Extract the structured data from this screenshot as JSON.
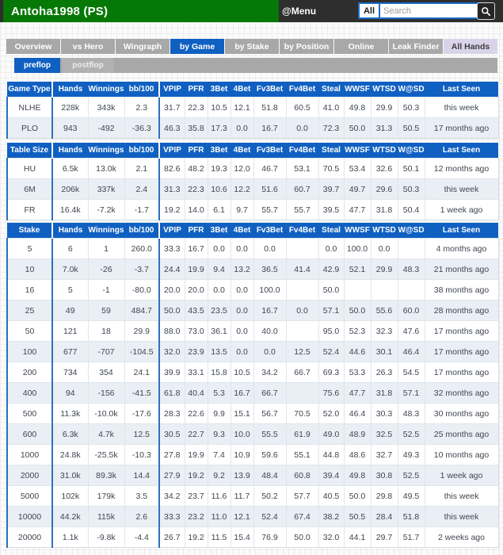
{
  "topbar": {
    "title": "Antoha1998 (PS)",
    "menu_label": "@Menu",
    "filter_value": "All",
    "search_placeholder": "Search"
  },
  "tabs": [
    {
      "label": "Overview",
      "state": "default"
    },
    {
      "label": "vs Hero",
      "state": "default"
    },
    {
      "label": "Wingraph",
      "state": "default"
    },
    {
      "label": "by Game",
      "state": "active"
    },
    {
      "label": "by Stake",
      "state": "default"
    },
    {
      "label": "by Position",
      "state": "default"
    },
    {
      "label": "Online",
      "state": "default"
    },
    {
      "label": "Leak Finder",
      "state": "default"
    },
    {
      "label": "All Hands",
      "state": "highlight"
    }
  ],
  "subtabs": [
    {
      "label": "preflop",
      "state": "active"
    },
    {
      "label": "postflop",
      "state": "default"
    }
  ],
  "stat_columns": [
    "Hands",
    "Winnings",
    "bb/100",
    "VPIP",
    "PFR",
    "3Bet",
    "4Bet",
    "Fv3Bet",
    "Fv4Bet",
    "Steal",
    "WWSF",
    "WTSD",
    "W@SD",
    "Last Seen"
  ],
  "tables": [
    {
      "key_header": "Game Type",
      "rows": [
        {
          "key": "NLHE",
          "values": [
            "228k",
            "343k",
            "2.3",
            "31.7",
            "22.3",
            "10.5",
            "12.1",
            "51.8",
            "60.5",
            "41.0",
            "49.8",
            "29.9",
            "50.3",
            "this week"
          ]
        },
        {
          "key": "PLO",
          "values": [
            "943",
            "-492",
            "-36.3",
            "46.3",
            "35.8",
            "17.3",
            "0.0",
            "16.7",
            "0.0",
            "72.3",
            "50.0",
            "31.3",
            "50.5",
            "17 months ago"
          ]
        }
      ]
    },
    {
      "key_header": "Table Size",
      "rows": [
        {
          "key": "HU",
          "values": [
            "6.5k",
            "13.0k",
            "2.1",
            "82.6",
            "48.2",
            "19.3",
            "12.0",
            "46.7",
            "53.1",
            "70.5",
            "53.4",
            "32.6",
            "50.1",
            "12 months ago"
          ]
        },
        {
          "key": "6M",
          "values": [
            "206k",
            "337k",
            "2.4",
            "31.3",
            "22.3",
            "10.6",
            "12.2",
            "51.6",
            "60.7",
            "39.7",
            "49.7",
            "29.6",
            "50.3",
            "this week"
          ]
        },
        {
          "key": "FR",
          "values": [
            "16.4k",
            "-7.2k",
            "-1.7",
            "19.2",
            "14.0",
            "6.1",
            "9.7",
            "55.7",
            "55.7",
            "39.5",
            "47.7",
            "31.8",
            "50.4",
            "1 week ago"
          ]
        }
      ]
    },
    {
      "key_header": "Stake",
      "rows": [
        {
          "key": "5",
          "values": [
            "6",
            "1",
            "260.0",
            "33.3",
            "16.7",
            "0.0",
            "0.0",
            "0.0",
            "",
            "0.0",
            "100.0",
            "0.0",
            "",
            "4 months ago"
          ]
        },
        {
          "key": "10",
          "values": [
            "7.0k",
            "-26",
            "-3.7",
            "24.4",
            "19.9",
            "9.4",
            "13.2",
            "36.5",
            "41.4",
            "42.9",
            "52.1",
            "29.9",
            "48.3",
            "21 months ago"
          ]
        },
        {
          "key": "16",
          "values": [
            "5",
            "-1",
            "-80.0",
            "20.0",
            "20.0",
            "0.0",
            "0.0",
            "100.0",
            "",
            "50.0",
            "",
            "",
            "",
            "38 months ago"
          ]
        },
        {
          "key": "25",
          "values": [
            "49",
            "59",
            "484.7",
            "50.0",
            "43.5",
            "23.5",
            "0.0",
            "16.7",
            "0.0",
            "57.1",
            "50.0",
            "55.6",
            "60.0",
            "28 months ago"
          ]
        },
        {
          "key": "50",
          "values": [
            "121",
            "18",
            "29.9",
            "88.0",
            "73.0",
            "36.1",
            "0.0",
            "40.0",
            "",
            "95.0",
            "52.3",
            "32.3",
            "47.6",
            "17 months ago"
          ]
        },
        {
          "key": "100",
          "values": [
            "677",
            "-707",
            "-104.5",
            "32.0",
            "23.9",
            "13.5",
            "0.0",
            "0.0",
            "12.5",
            "52.4",
            "44.6",
            "30.1",
            "46.4",
            "17 months ago"
          ]
        },
        {
          "key": "200",
          "values": [
            "734",
            "354",
            "24.1",
            "39.9",
            "33.1",
            "15.8",
            "10.5",
            "34.2",
            "66.7",
            "69.3",
            "53.3",
            "26.3",
            "54.5",
            "17 months ago"
          ]
        },
        {
          "key": "400",
          "values": [
            "94",
            "-156",
            "-41.5",
            "61.8",
            "40.4",
            "5.3",
            "16.7",
            "66.7",
            "",
            "75.6",
            "47.7",
            "31.8",
            "57.1",
            "32 months ago"
          ]
        },
        {
          "key": "500",
          "values": [
            "11.3k",
            "-10.0k",
            "-17.6",
            "28.3",
            "22.6",
            "9.9",
            "15.1",
            "56.7",
            "70.5",
            "52.0",
            "46.4",
            "30.3",
            "48.3",
            "30 months ago"
          ]
        },
        {
          "key": "600",
          "values": [
            "6.3k",
            "4.7k",
            "12.5",
            "30.5",
            "22.7",
            "9.3",
            "10.0",
            "55.5",
            "61.9",
            "49.0",
            "48.9",
            "32.5",
            "52.5",
            "25 months ago"
          ]
        },
        {
          "key": "1000",
          "values": [
            "24.8k",
            "-25.5k",
            "-10.3",
            "27.8",
            "19.9",
            "7.4",
            "10.9",
            "59.6",
            "55.1",
            "44.8",
            "48.6",
            "32.7",
            "49.3",
            "10 months ago"
          ]
        },
        {
          "key": "2000",
          "values": [
            "31.0k",
            "89.3k",
            "14.4",
            "27.9",
            "19.2",
            "9.2",
            "13.9",
            "48.4",
            "60.8",
            "39.4",
            "49.8",
            "30.8",
            "52.5",
            "1 week ago"
          ]
        },
        {
          "key": "5000",
          "values": [
            "102k",
            "179k",
            "3.5",
            "34.2",
            "23.7",
            "11.6",
            "11.7",
            "50.2",
            "57.7",
            "40.5",
            "50.0",
            "29.8",
            "49.5",
            "this week"
          ]
        },
        {
          "key": "10000",
          "values": [
            "44.2k",
            "115k",
            "2.6",
            "33.3",
            "23.2",
            "11.0",
            "12.1",
            "52.4",
            "67.4",
            "38.2",
            "50.5",
            "28.4",
            "51.8",
            "this week"
          ]
        },
        {
          "key": "20000",
          "values": [
            "1.1k",
            "-9.8k",
            "-4.4",
            "26.7",
            "19.2",
            "11.5",
            "15.4",
            "76.9",
            "50.0",
            "32.0",
            "44.1",
            "29.7",
            "51.7",
            "2 weeks ago"
          ]
        }
      ]
    }
  ],
  "colors": {
    "header_green": "#067806",
    "topbar_dark": "#2e2e2e",
    "accent_blue": "#1060c2",
    "tab_gray": "#a8a8a8",
    "allhands_lavender": "#d9d3ea",
    "alt_row": "#e9eff5"
  }
}
